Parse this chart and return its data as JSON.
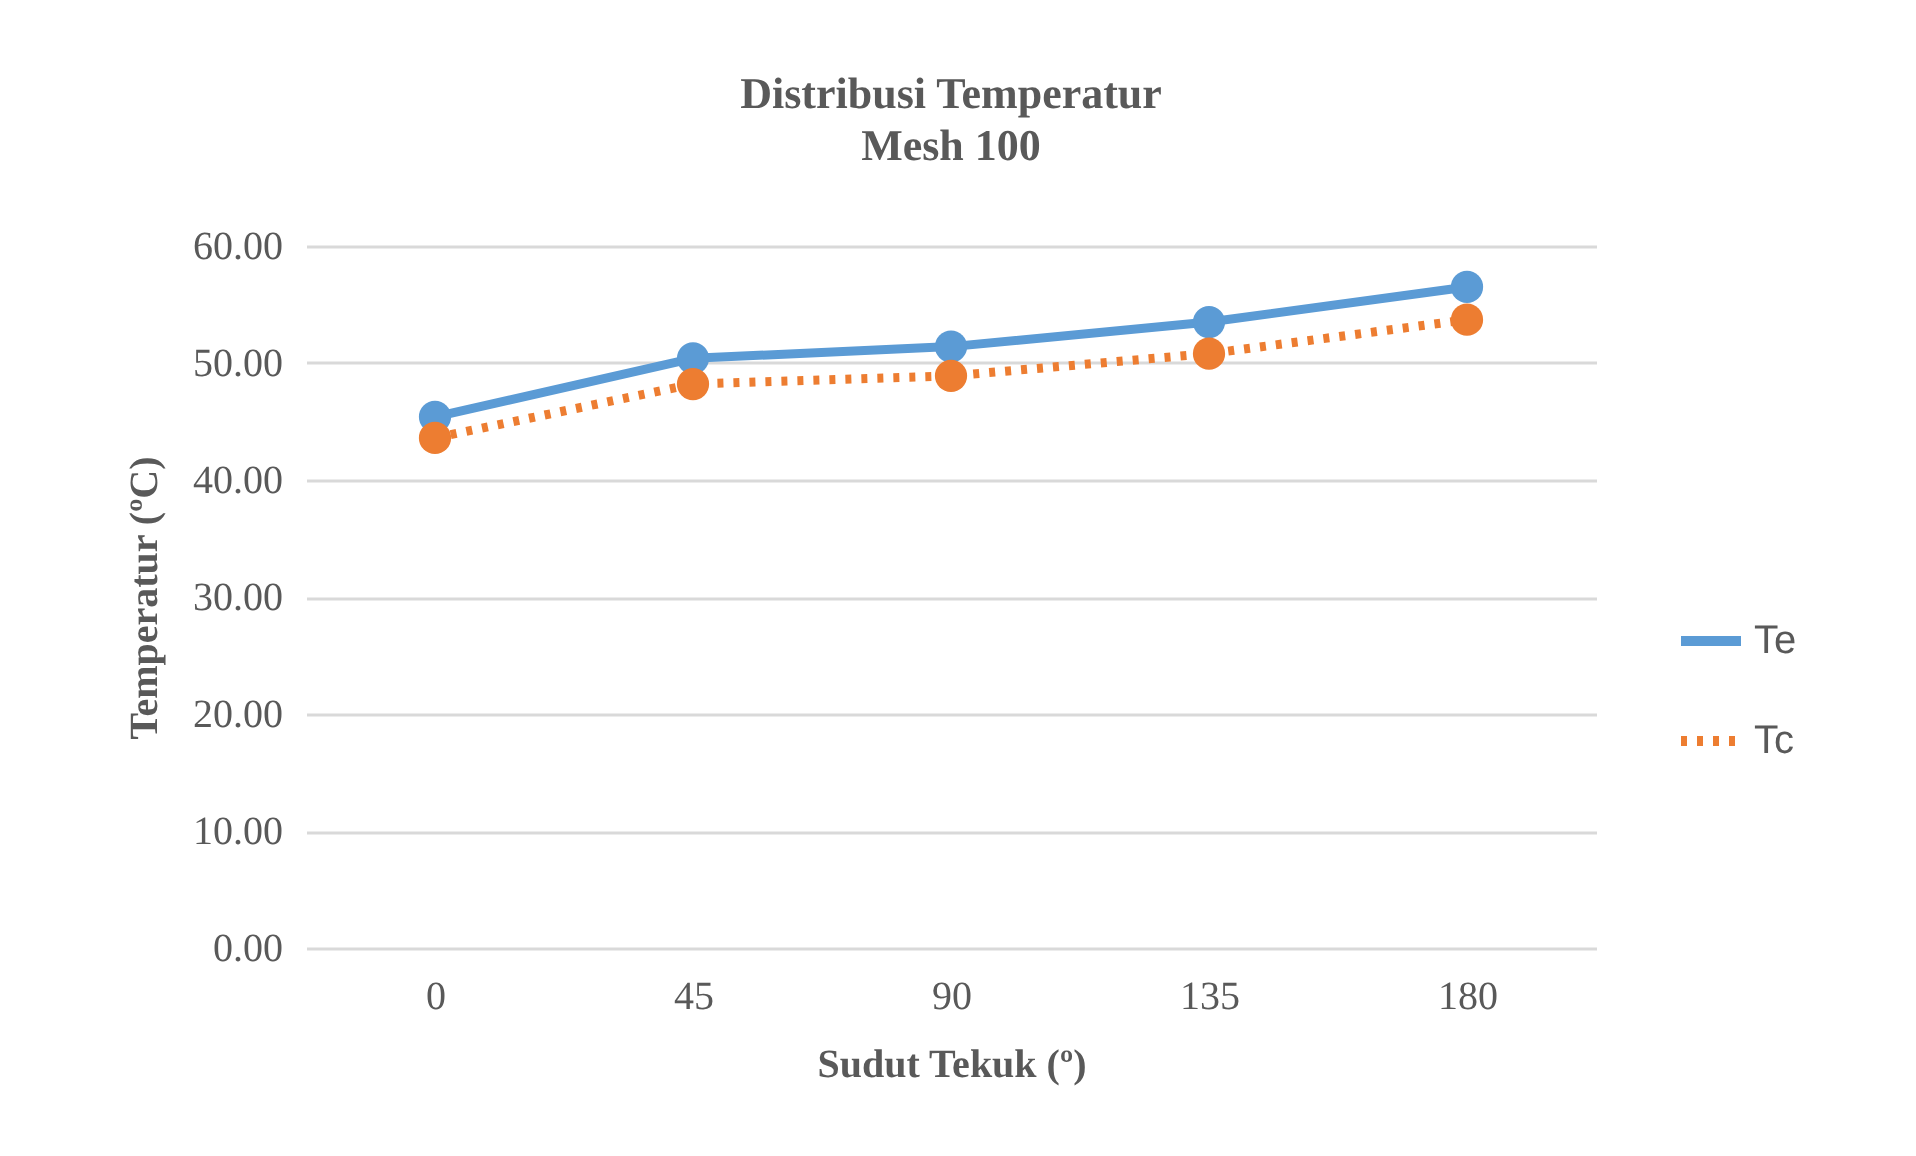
{
  "chart_data": {
    "type": "line",
    "title": "Distribusi Temperatur",
    "subtitle": "Mesh 100",
    "xlabel": "Sudut Tekuk (º)",
    "ylabel": "Temperatur (ºC)",
    "categories": [
      "0",
      "45",
      "90",
      "135",
      "180"
    ],
    "series": [
      {
        "name": "Te",
        "color": "#5b9bd5",
        "line_style": "solid",
        "values": [
          45.4,
          50.4,
          51.4,
          53.5,
          56.5
        ]
      },
      {
        "name": "Tc",
        "color": "#ed7d31",
        "line_style": "dotted",
        "values": [
          43.6,
          48.2,
          48.9,
          50.8,
          53.7
        ]
      }
    ],
    "ylim": [
      0,
      60
    ],
    "yticks": [
      {
        "value": 0,
        "label": "0.00"
      },
      {
        "value": 10,
        "label": "10.00"
      },
      {
        "value": 20,
        "label": "20.00"
      },
      {
        "value": 30,
        "label": "30.00"
      },
      {
        "value": 40,
        "label": "40.00"
      },
      {
        "value": 50,
        "label": "50.00"
      },
      {
        "value": 60,
        "label": "60.00"
      }
    ],
    "grid": "y",
    "legend": "right",
    "marker": "circle"
  }
}
